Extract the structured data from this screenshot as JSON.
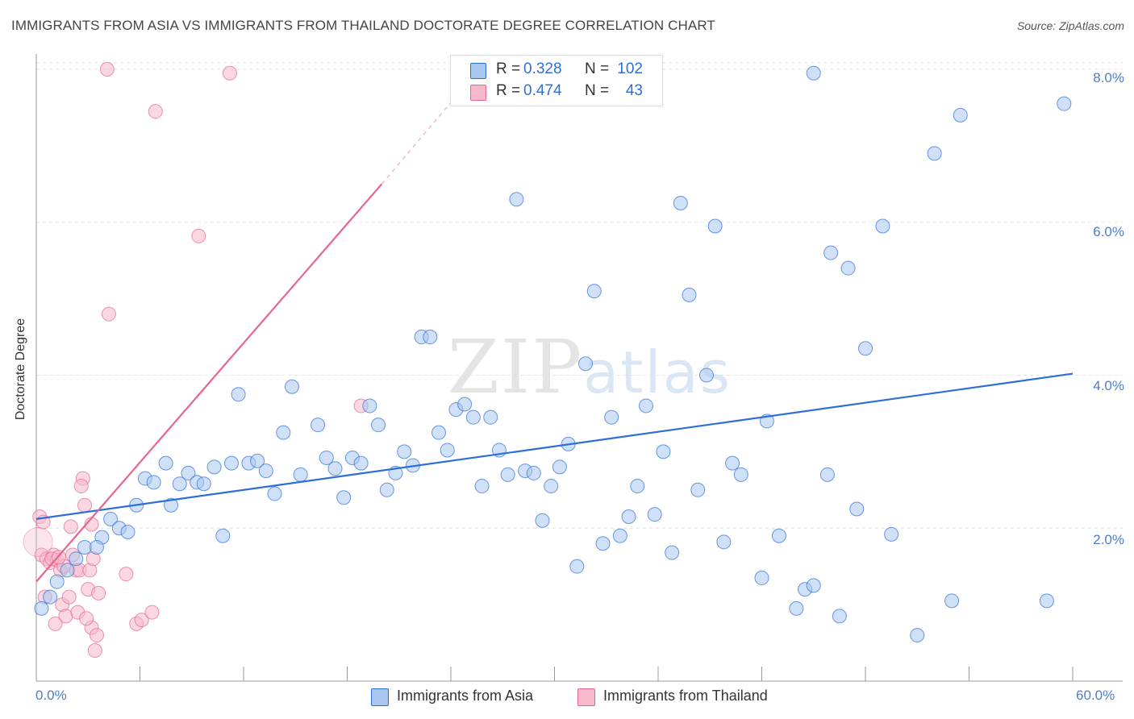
{
  "title": "IMMIGRANTS FROM ASIA VS IMMIGRANTS FROM THAILAND DOCTORATE DEGREE CORRELATION CHART",
  "source": "Source: ZipAtlas.com",
  "watermark": {
    "zip": "ZIP",
    "atlas": "atlas"
  },
  "colors": {
    "asia": "#2e6fd6",
    "asia_fill": "#a9c6ee",
    "thailand": "#e8658e",
    "thailand_fill": "#f6b8cb"
  },
  "stats": {
    "asia": {
      "r_label": "R =",
      "r_value": "0.328",
      "n_label": "N =",
      "n_value": "102"
    },
    "thailand": {
      "r_label": "R =",
      "r_value": "0.474",
      "n_label": "N =",
      "n_value": "43"
    }
  },
  "legend": {
    "asia": "Immigrants from Asia",
    "thailand": "Immigrants from Thailand"
  },
  "chart_data": {
    "type": "scatter",
    "title": "IMMIGRANTS FROM ASIA VS IMMIGRANTS FROM THAILAND DOCTORATE DEGREE CORRELATION CHART",
    "xlabel": "",
    "ylabel": "Doctorate Degree",
    "xlim": [
      0,
      60
    ],
    "ylim": [
      0,
      8.2
    ],
    "x_tick_labels": [
      "0.0%",
      "60.0%"
    ],
    "y_ticks": [
      2,
      4,
      6,
      8
    ],
    "y_tick_labels": [
      "2.0%",
      "4.0%",
      "6.0%",
      "8.0%"
    ],
    "grid": true,
    "series": [
      {
        "name": "Immigrants from Asia",
        "trend": {
          "x": [
            0,
            60
          ],
          "y": [
            2.12,
            4.02
          ]
        },
        "points": [
          [
            0.3,
            0.95
          ],
          [
            0.8,
            1.1
          ],
          [
            1.2,
            1.3
          ],
          [
            1.8,
            1.45
          ],
          [
            2.3,
            1.6
          ],
          [
            2.8,
            1.75
          ],
          [
            3.8,
            1.88
          ],
          [
            3.5,
            1.75
          ],
          [
            4.3,
            2.12
          ],
          [
            4.8,
            2.0
          ],
          [
            5.3,
            1.95
          ],
          [
            5.8,
            2.3
          ],
          [
            6.3,
            2.65
          ],
          [
            6.8,
            2.6
          ],
          [
            7.5,
            2.85
          ],
          [
            7.8,
            2.3
          ],
          [
            8.3,
            2.58
          ],
          [
            8.8,
            2.72
          ],
          [
            9.3,
            2.6
          ],
          [
            9.7,
            2.58
          ],
          [
            10.3,
            2.8
          ],
          [
            10.8,
            1.9
          ],
          [
            11.3,
            2.85
          ],
          [
            11.7,
            3.75
          ],
          [
            12.3,
            2.85
          ],
          [
            12.8,
            2.88
          ],
          [
            13.3,
            2.75
          ],
          [
            13.8,
            2.45
          ],
          [
            14.3,
            3.25
          ],
          [
            14.8,
            3.85
          ],
          [
            15.3,
            2.7
          ],
          [
            16.3,
            3.35
          ],
          [
            16.8,
            2.92
          ],
          [
            17.3,
            2.78
          ],
          [
            17.8,
            2.4
          ],
          [
            18.3,
            2.92
          ],
          [
            18.8,
            2.85
          ],
          [
            19.3,
            3.6
          ],
          [
            19.8,
            3.35
          ],
          [
            20.3,
            2.5
          ],
          [
            20.8,
            2.72
          ],
          [
            21.3,
            3.0
          ],
          [
            21.8,
            2.82
          ],
          [
            22.3,
            4.5
          ],
          [
            22.8,
            4.5
          ],
          [
            23.3,
            3.25
          ],
          [
            23.8,
            3.02
          ],
          [
            24.3,
            3.55
          ],
          [
            24.8,
            3.62
          ],
          [
            25.3,
            3.45
          ],
          [
            25.8,
            2.55
          ],
          [
            26.3,
            3.45
          ],
          [
            26.8,
            3.02
          ],
          [
            27.3,
            2.7
          ],
          [
            27.8,
            6.3
          ],
          [
            28.3,
            2.75
          ],
          [
            28.8,
            2.72
          ],
          [
            29.3,
            2.1
          ],
          [
            29.8,
            2.55
          ],
          [
            30.3,
            2.8
          ],
          [
            30.8,
            3.1
          ],
          [
            31.3,
            1.5
          ],
          [
            31.8,
            4.15
          ],
          [
            32.3,
            5.1
          ],
          [
            32.8,
            1.8
          ],
          [
            33.3,
            3.45
          ],
          [
            33.8,
            1.9
          ],
          [
            34.3,
            2.15
          ],
          [
            34.8,
            2.55
          ],
          [
            35.3,
            3.6
          ],
          [
            35.8,
            2.18
          ],
          [
            36.3,
            3.0
          ],
          [
            36.8,
            1.68
          ],
          [
            37.3,
            6.25
          ],
          [
            37.8,
            5.05
          ],
          [
            38.3,
            2.5
          ],
          [
            38.8,
            4.0
          ],
          [
            39.3,
            5.95
          ],
          [
            39.8,
            1.82
          ],
          [
            40.3,
            2.85
          ],
          [
            40.8,
            2.7
          ],
          [
            42.0,
            1.35
          ],
          [
            42.3,
            3.4
          ],
          [
            43.0,
            1.9
          ],
          [
            44.0,
            0.95
          ],
          [
            44.5,
            1.2
          ],
          [
            45.0,
            1.25
          ],
          [
            45.8,
            2.7
          ],
          [
            46.0,
            5.6
          ],
          [
            46.5,
            0.85
          ],
          [
            47.0,
            5.4
          ],
          [
            47.5,
            2.25
          ],
          [
            48.0,
            4.35
          ],
          [
            49.0,
            5.95
          ],
          [
            51.0,
            0.6
          ],
          [
            52.0,
            6.9
          ],
          [
            53.0,
            1.05
          ],
          [
            53.5,
            7.4
          ],
          [
            58.5,
            1.05
          ],
          [
            59.5,
            7.55
          ],
          [
            45.0,
            7.95
          ],
          [
            49.5,
            1.92
          ]
        ]
      },
      {
        "name": "Immigrants from Thailand",
        "trend": {
          "x": [
            0,
            20
          ],
          "y": [
            1.3,
            6.5
          ]
        },
        "trend_dashed": {
          "x": [
            20,
            24.5
          ],
          "y": [
            6.5,
            7.7
          ]
        },
        "points": [
          [
            0.2,
            2.15
          ],
          [
            0.4,
            2.08
          ],
          [
            0.3,
            1.65
          ],
          [
            0.6,
            1.6
          ],
          [
            0.8,
            1.55
          ],
          [
            1.0,
            1.65
          ],
          [
            1.2,
            1.58
          ],
          [
            1.4,
            1.45
          ],
          [
            1.6,
            1.5
          ],
          [
            1.5,
            1.0
          ],
          [
            1.7,
            0.85
          ],
          [
            1.9,
            1.1
          ],
          [
            2.1,
            1.65
          ],
          [
            2.3,
            1.45
          ],
          [
            2.4,
            0.9
          ],
          [
            2.5,
            1.45
          ],
          [
            2.7,
            2.65
          ],
          [
            2.6,
            2.55
          ],
          [
            2.8,
            2.3
          ],
          [
            3.0,
            1.2
          ],
          [
            3.1,
            1.45
          ],
          [
            3.2,
            0.7
          ],
          [
            3.3,
            1.6
          ],
          [
            3.5,
            0.6
          ],
          [
            3.6,
            1.15
          ],
          [
            3.2,
            2.05
          ],
          [
            3.4,
            0.4
          ],
          [
            2.9,
            0.82
          ],
          [
            4.1,
            8.0
          ],
          [
            4.2,
            4.8
          ],
          [
            5.2,
            1.4
          ],
          [
            5.8,
            0.75
          ],
          [
            6.1,
            0.8
          ],
          [
            6.7,
            0.9
          ],
          [
            6.9,
            7.45
          ],
          [
            9.4,
            5.82
          ],
          [
            11.2,
            7.95
          ],
          [
            18.8,
            3.6
          ],
          [
            0.9,
            1.6
          ],
          [
            1.3,
            1.62
          ],
          [
            0.5,
            1.1
          ],
          [
            2.0,
            2.02
          ],
          [
            1.1,
            0.75
          ]
        ]
      }
    ]
  }
}
